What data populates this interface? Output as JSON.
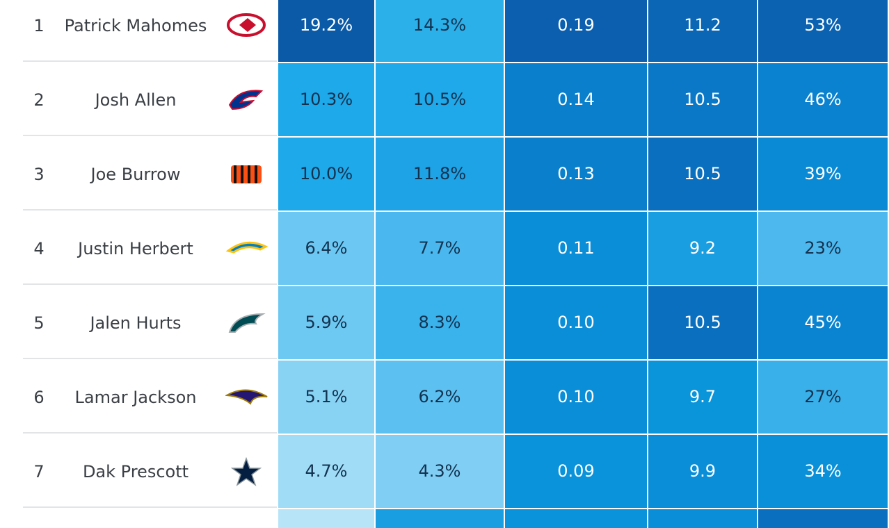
{
  "rows": [
    {
      "rank": "1",
      "name": "Patrick Mahomes",
      "team": "chiefs",
      "cells": [
        {
          "text": "19.2%",
          "color": "#0b5aa7",
          "text_color": "#ffffff"
        },
        {
          "text": "14.3%",
          "color": "#2bb0ea",
          "text_color": "#13324f"
        },
        {
          "text": "0.19",
          "color": "#0b5fae",
          "text_color": "#ffffff"
        },
        {
          "text": "11.2",
          "color": "#0b66b6",
          "text_color": "#ffffff"
        },
        {
          "text": "53%",
          "color": "#0b62b1",
          "text_color": "#ffffff"
        }
      ]
    },
    {
      "rank": "2",
      "name": "Josh Allen",
      "team": "bills",
      "cells": [
        {
          "text": "10.3%",
          "color": "#1ea9ea",
          "text_color": "#13324f"
        },
        {
          "text": "10.5%",
          "color": "#1fa9ea",
          "text_color": "#13324f"
        },
        {
          "text": "0.14",
          "color": "#0a80cc",
          "text_color": "#ffffff"
        },
        {
          "text": "10.5",
          "color": "#0a78c6",
          "text_color": "#ffffff"
        },
        {
          "text": "46%",
          "color": "#0a82cf",
          "text_color": "#ffffff"
        }
      ]
    },
    {
      "rank": "3",
      "name": "Joe Burrow",
      "team": "bengals",
      "cells": [
        {
          "text": "10.0%",
          "color": "#1ea9ea",
          "text_color": "#13324f"
        },
        {
          "text": "11.8%",
          "color": "#1ea3e6",
          "text_color": "#13324f"
        },
        {
          "text": "0.13",
          "color": "#0a80cc",
          "text_color": "#ffffff"
        },
        {
          "text": "10.5",
          "color": "#0a6fbe",
          "text_color": "#ffffff"
        },
        {
          "text": "39%",
          "color": "#0a8ad4",
          "text_color": "#ffffff"
        }
      ]
    },
    {
      "rank": "4",
      "name": "Justin Herbert",
      "team": "chargers",
      "cells": [
        {
          "text": "6.4%",
          "color": "#6cc8f2",
          "text_color": "#13324f"
        },
        {
          "text": "7.7%",
          "color": "#4ab8ee",
          "text_color": "#13324f"
        },
        {
          "text": "0.11",
          "color": "#0a8ed8",
          "text_color": "#ffffff"
        },
        {
          "text": "9.2",
          "color": "#1a9ee2",
          "text_color": "#ffffff"
        },
        {
          "text": "23%",
          "color": "#4cb8ee",
          "text_color": "#13324f"
        }
      ]
    },
    {
      "rank": "5",
      "name": "Jalen Hurts",
      "team": "eagles",
      "cells": [
        {
          "text": "5.9%",
          "color": "#6ec9f2",
          "text_color": "#13324f"
        },
        {
          "text": "8.3%",
          "color": "#3ab2ec",
          "text_color": "#13324f"
        },
        {
          "text": "0.10",
          "color": "#0a8ed8",
          "text_color": "#ffffff"
        },
        {
          "text": "10.5",
          "color": "#0a6fbe",
          "text_color": "#ffffff"
        },
        {
          "text": "45%",
          "color": "#0a84d0",
          "text_color": "#ffffff"
        }
      ]
    },
    {
      "rank": "6",
      "name": "Lamar Jackson",
      "team": "ravens",
      "cells": [
        {
          "text": "5.1%",
          "color": "#88d2f4",
          "text_color": "#13324f"
        },
        {
          "text": "6.2%",
          "color": "#5cc0f0",
          "text_color": "#13324f"
        },
        {
          "text": "0.10",
          "color": "#0b8ed8",
          "text_color": "#ffffff"
        },
        {
          "text": "9.7",
          "color": "#0a94da",
          "text_color": "#ffffff"
        },
        {
          "text": "27%",
          "color": "#3ab0ea",
          "text_color": "#13324f"
        }
      ]
    },
    {
      "rank": "7",
      "name": "Dak Prescott",
      "team": "cowboys",
      "cells": [
        {
          "text": "4.7%",
          "color": "#a0dcf6",
          "text_color": "#13324f"
        },
        {
          "text": "4.3%",
          "color": "#80cef4",
          "text_color": "#13324f"
        },
        {
          "text": "0.09",
          "color": "#0a92da",
          "text_color": "#ffffff"
        },
        {
          "text": "9.9",
          "color": "#0b8ed8",
          "text_color": "#ffffff"
        },
        {
          "text": "34%",
          "color": "#0a90d8",
          "text_color": "#ffffff"
        }
      ]
    }
  ]
}
